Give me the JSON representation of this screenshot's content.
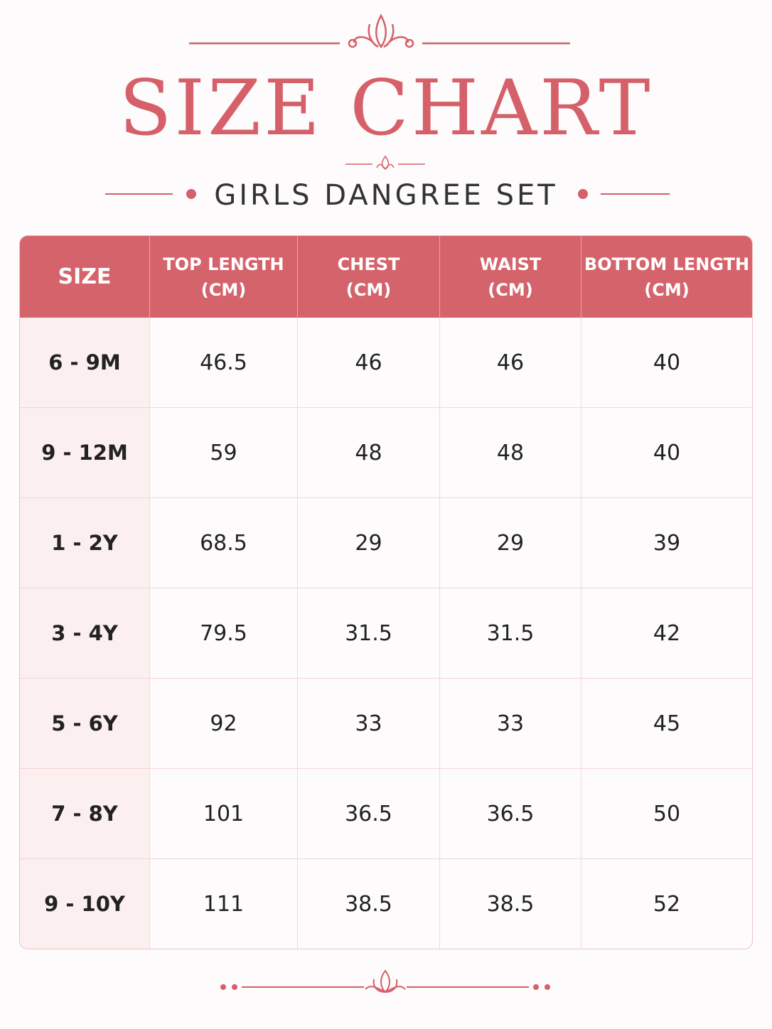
{
  "header": {
    "title": "SIZE CHART",
    "subtitle": "GIRLS DANGREE SET"
  },
  "table": {
    "columns": [
      {
        "lines": [
          "SIZE"
        ]
      },
      {
        "lines": [
          "TOP LENGTH",
          "(CM)"
        ]
      },
      {
        "lines": [
          "CHEST",
          "(CM)"
        ]
      },
      {
        "lines": [
          "WAIST",
          "(CM)"
        ]
      },
      {
        "lines": [
          "BOTTOM LENGTH",
          "(CM)"
        ]
      }
    ],
    "rows": [
      [
        "6 - 9M",
        "46.5",
        "46",
        "46",
        "40"
      ],
      [
        "9 - 12M",
        "59",
        "48",
        "48",
        "40"
      ],
      [
        "1 - 2Y",
        "68.5",
        "29",
        "29",
        "39"
      ],
      [
        "3 - 4Y",
        "79.5",
        "31.5",
        "31.5",
        "42"
      ],
      [
        "5 - 6Y",
        "92",
        "33",
        "33",
        "45"
      ],
      [
        "7 - 8Y",
        "101",
        "36.5",
        "36.5",
        "50"
      ],
      [
        "9 - 10Y",
        "111",
        "38.5",
        "38.5",
        "52"
      ]
    ]
  }
}
